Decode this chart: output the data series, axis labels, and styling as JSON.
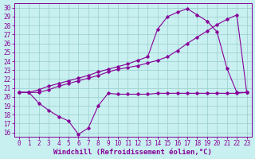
{
  "xlabel": "Windchill (Refroidissement éolien,°C)",
  "bg_color": "#c8f0f0",
  "line_color": "#880099",
  "grid_color": "#99cccc",
  "xlim": [
    -0.5,
    23.5
  ],
  "ylim": [
    15.5,
    30.5
  ],
  "xticks": [
    0,
    1,
    2,
    3,
    4,
    5,
    6,
    7,
    8,
    9,
    10,
    11,
    12,
    13,
    14,
    15,
    16,
    17,
    18,
    19,
    20,
    21,
    22,
    23
  ],
  "yticks": [
    16,
    17,
    18,
    19,
    20,
    21,
    22,
    23,
    24,
    25,
    26,
    27,
    28,
    29,
    30
  ],
  "line1_x": [
    0,
    1,
    2,
    3,
    4,
    5,
    6,
    7,
    8,
    9,
    10,
    11,
    12,
    13,
    14,
    15,
    16,
    17,
    18,
    19,
    20,
    21,
    22,
    23
  ],
  "line1_y": [
    20.5,
    20.5,
    19.3,
    18.5,
    17.8,
    17.3,
    15.8,
    16.5,
    19.0,
    20.4,
    20.3,
    20.3,
    20.3,
    20.3,
    20.4,
    20.4,
    20.4,
    20.4,
    20.4,
    20.4,
    20.4,
    20.4,
    20.4,
    20.5
  ],
  "line2_x": [
    0,
    1,
    2,
    3,
    4,
    5,
    6,
    7,
    8,
    9,
    10,
    11,
    12,
    13,
    14,
    15,
    16,
    17,
    18,
    19,
    20,
    21,
    22,
    23
  ],
  "line2_y": [
    20.5,
    20.5,
    20.5,
    20.8,
    21.2,
    21.5,
    21.8,
    22.1,
    22.4,
    22.8,
    23.1,
    23.3,
    23.5,
    23.8,
    24.1,
    24.5,
    25.2,
    26.0,
    26.7,
    27.4,
    28.1,
    28.7,
    29.2,
    20.5
  ],
  "line3_x": [
    0,
    1,
    2,
    3,
    4,
    5,
    6,
    7,
    8,
    9,
    10,
    11,
    12,
    13,
    14,
    15,
    16,
    17,
    18,
    19,
    20,
    21,
    22,
    23
  ],
  "line3_y": [
    20.5,
    20.5,
    20.8,
    21.2,
    21.5,
    21.8,
    22.1,
    22.4,
    22.8,
    23.1,
    23.4,
    23.7,
    24.1,
    24.5,
    27.6,
    29.0,
    29.5,
    29.9,
    29.2,
    28.5,
    27.3,
    23.2,
    20.5,
    20.5
  ],
  "tick_font_size": 5.5,
  "xlabel_font_size": 6.5,
  "marker": "D",
  "marker_size": 1.8,
  "lw": 0.8
}
